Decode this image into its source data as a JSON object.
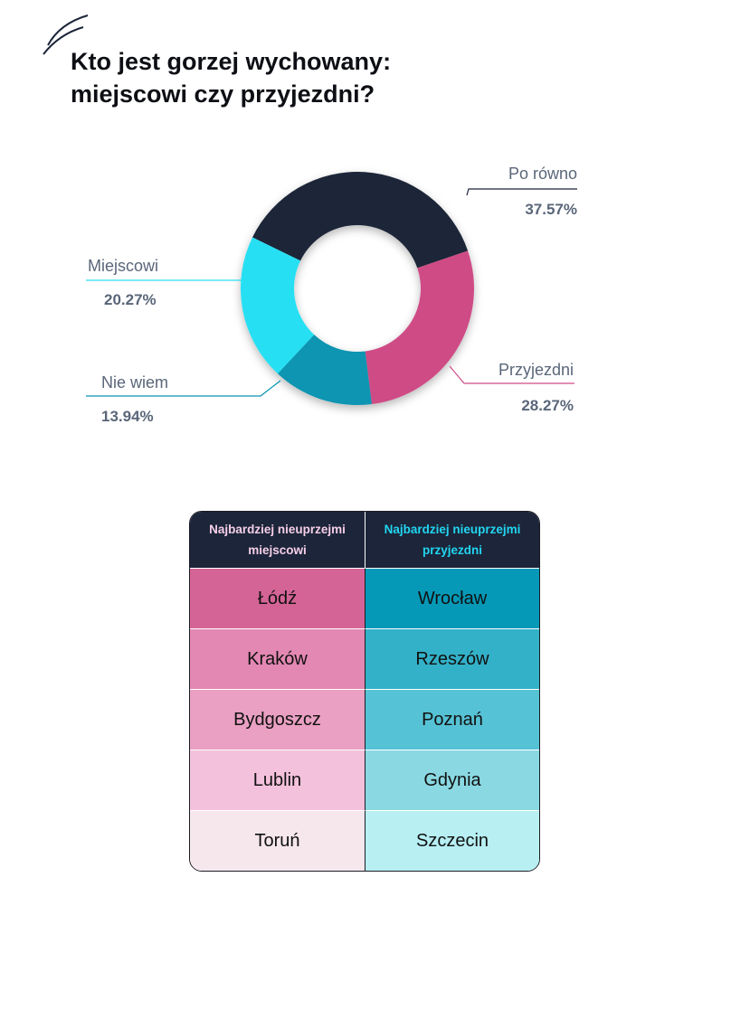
{
  "title_lines": [
    "Kto jest gorzej wychowany:",
    "miejscowi czy przyjezdni?"
  ],
  "colors": {
    "po_rowno": "#1c2539",
    "przyjezdni": "#cf4b86",
    "nie_wiem": "#0b95b2",
    "miejscowi": "#27dff2",
    "table_header_bg": "#1c2539",
    "label_text": "#5a6679"
  },
  "chart_data": {
    "type": "pie",
    "variant": "donut",
    "title": "Kto jest gorzej wychowany: miejscowi czy przyjezdni?",
    "slices": [
      {
        "name": "Po równo",
        "value": 37.57,
        "label": "37.57%",
        "color": "#1c2539"
      },
      {
        "name": "Przyjezdni",
        "value": 28.27,
        "label": "28.27%",
        "color": "#cf4b86"
      },
      {
        "name": "Nie wiem",
        "value": 13.94,
        "label": "13.94%",
        "color": "#0b95b2"
      },
      {
        "name": "Miejscowi",
        "value": 20.27,
        "label": "20.27%",
        "color": "#27dff2"
      }
    ]
  },
  "table": {
    "headers": [
      {
        "lines": [
          "Najbardziej nieuprzejmi",
          "miejscowi"
        ],
        "color": "#f6cfe8"
      },
      {
        "lines": [
          "Najbardziej nieuprzejmi",
          "przyjezdni"
        ],
        "color": "#22d5f1"
      }
    ],
    "rows": [
      {
        "left": "Łódź",
        "right": "Wrocław",
        "left_color": "#d56496",
        "right_color": "#0599b7"
      },
      {
        "left": "Kraków",
        "right": "Rzeszów",
        "left_color": "#e388b2",
        "right_color": "#33b1c8"
      },
      {
        "left": "Bydgoszcz",
        "right": "Poznań",
        "left_color": "#e9a0c2",
        "right_color": "#56c2d5"
      },
      {
        "left": "Lublin",
        "right": "Gdynia",
        "left_color": "#f4c1dc",
        "right_color": "#8ad9e2"
      },
      {
        "left": "Toruń",
        "right": "Szczecin",
        "left_color": "#f6e7ed",
        "right_color": "#b7eff3"
      }
    ]
  }
}
